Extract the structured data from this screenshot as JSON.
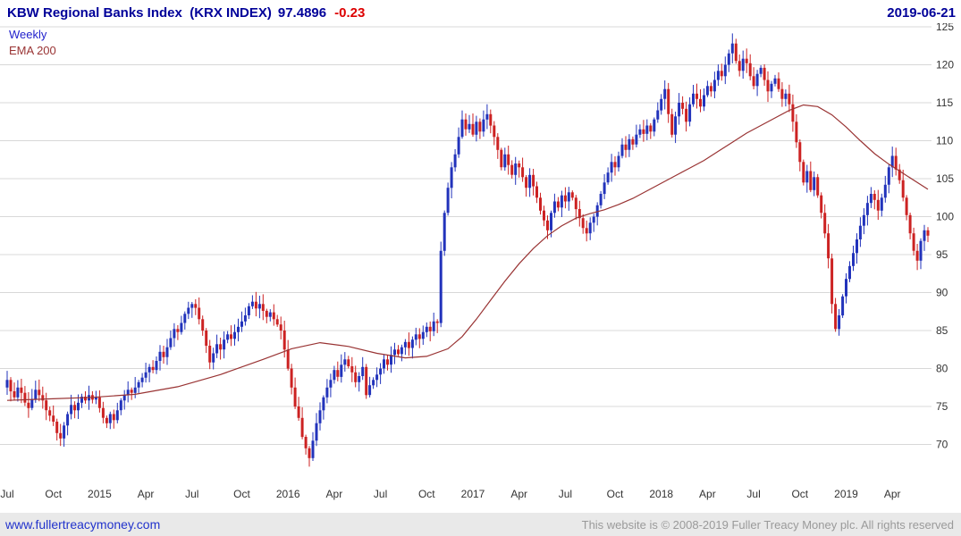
{
  "header": {
    "title": "KBW Regional Banks Index  (KRX INDEX)",
    "price": "97.4896",
    "change": "-0.23",
    "date": "2019-06-21"
  },
  "legend": {
    "timeframe": "Weekly",
    "ema_label": "EMA 200"
  },
  "footer": {
    "site": "www.fullertreacymoney.com",
    "copyright": "This website is © 2008-2019 Fuller Treacy Money plc. All rights reserved"
  },
  "colors": {
    "title": "#000099",
    "change_negative": "#dd0000",
    "legend_timeframe": "#2222cc",
    "legend_ema": "#993333",
    "footer_bg": "#e9e9e9",
    "footer_link": "#2233cc",
    "footer_text": "#9a9a9a"
  },
  "chart_data": {
    "type": "candlestick",
    "title": "KBW Regional Banks Index (KRX INDEX)",
    "timeframe": "weekly",
    "x_axis": "time, weekly bars from Jul 2014 to Jun 2019",
    "last_price": 97.4896,
    "change": -0.23,
    "ylim": [
      67,
      125.5
    ],
    "grid": true,
    "legend_position": "top-left",
    "up_color": "#2233bb",
    "down_color": "#cc2222",
    "ema_color": "#993333",
    "grid_color": "#d8d8d8",
    "axis_text_color": "#333333",
    "y_ticks": [
      70,
      75,
      80,
      85,
      90,
      95,
      100,
      105,
      110,
      115,
      120,
      125
    ],
    "x_ticks": [
      {
        "label": "Jul",
        "week": 0
      },
      {
        "label": "Oct",
        "week": 13
      },
      {
        "label": "2015",
        "week": 26
      },
      {
        "label": "Apr",
        "week": 39
      },
      {
        "label": "Jul",
        "week": 52
      },
      {
        "label": "Oct",
        "week": 66
      },
      {
        "label": "2016",
        "week": 79
      },
      {
        "label": "Apr",
        "week": 92
      },
      {
        "label": "Jul",
        "week": 105
      },
      {
        "label": "Oct",
        "week": 118
      },
      {
        "label": "2017",
        "week": 131
      },
      {
        "label": "Apr",
        "week": 144
      },
      {
        "label": "Jul",
        "week": 157
      },
      {
        "label": "Oct",
        "week": 171
      },
      {
        "label": "2018",
        "week": 184
      },
      {
        "label": "Apr",
        "week": 197
      },
      {
        "label": "Jul",
        "week": 210
      },
      {
        "label": "Oct",
        "week": 223
      },
      {
        "label": "2019",
        "week": 236
      },
      {
        "label": "Apr",
        "week": 249
      }
    ],
    "weekly_closes": [
      78.5,
      77.0,
      76.2,
      77.5,
      76.8,
      75.5,
      74.8,
      76.0,
      77.2,
      76.5,
      75.8,
      74.5,
      73.8,
      73.0,
      71.5,
      70.8,
      72.5,
      74.0,
      75.2,
      74.5,
      75.5,
      76.3,
      75.8,
      76.5,
      75.9,
      76.2,
      74.8,
      73.5,
      72.8,
      74.0,
      73.2,
      74.5,
      75.8,
      76.5,
      77.2,
      76.8,
      77.5,
      78.2,
      78.8,
      79.5,
      80.2,
      79.8,
      81.0,
      82.2,
      81.5,
      82.8,
      84.0,
      85.2,
      84.8,
      86.0,
      87.2,
      88.0,
      88.5,
      88.0,
      86.5,
      85.0,
      83.0,
      80.8,
      82.0,
      83.2,
      82.5,
      83.8,
      84.5,
      83.9,
      84.8,
      85.5,
      86.2,
      87.0,
      88.2,
      88.8,
      87.9,
      88.5,
      87.6,
      86.8,
      87.4,
      86.5,
      85.8,
      85.0,
      82.5,
      80.0,
      77.5,
      75.0,
      73.5,
      71.0,
      69.5,
      68.2,
      70.5,
      72.8,
      74.5,
      76.2,
      77.5,
      78.5,
      79.8,
      78.9,
      80.5,
      81.2,
      80.3,
      79.5,
      78.2,
      79.0,
      80.2,
      76.5,
      77.8,
      78.5,
      79.2,
      80.0,
      81.2,
      80.5,
      81.8,
      82.5,
      81.9,
      82.8,
      83.5,
      82.7,
      83.8,
      84.5,
      83.9,
      84.8,
      85.5,
      84.9,
      86.2,
      86.0,
      95.5,
      100.5,
      103.8,
      106.5,
      108.2,
      110.5,
      112.8,
      111.5,
      112.2,
      110.8,
      112.5,
      111.2,
      112.8,
      113.5,
      112.0,
      110.5,
      108.8,
      106.5,
      108.2,
      106.8,
      105.5,
      107.0,
      106.5,
      105.2,
      103.8,
      105.5,
      104.0,
      102.5,
      100.8,
      99.5,
      98.2,
      100.5,
      102.0,
      101.2,
      102.8,
      102.0,
      103.2,
      102.5,
      101.0,
      99.8,
      98.5,
      97.8,
      99.2,
      100.0,
      101.5,
      103.0,
      104.5,
      105.8,
      107.2,
      106.5,
      108.0,
      109.5,
      108.8,
      110.2,
      109.5,
      110.8,
      111.5,
      110.9,
      112.0,
      111.2,
      112.8,
      114.0,
      115.5,
      116.8,
      113.5,
      110.8,
      113.2,
      115.0,
      114.2,
      112.5,
      114.8,
      116.2,
      115.5,
      114.5,
      116.0,
      117.2,
      116.5,
      118.0,
      119.2,
      118.5,
      120.0,
      121.5,
      122.8,
      120.5,
      119.2,
      120.8,
      120.2,
      118.5,
      117.2,
      118.8,
      119.6,
      118.0,
      116.5,
      117.5,
      118.2,
      116.8,
      115.5,
      116.2,
      114.8,
      112.5,
      109.8,
      107.2,
      104.5,
      106.0,
      103.5,
      105.2,
      102.8,
      100.5,
      97.8,
      94.5,
      88.5,
      85.2,
      87.0,
      89.5,
      91.8,
      93.5,
      95.2,
      97.0,
      98.8,
      100.2,
      101.8,
      103.0,
      102.2,
      100.8,
      102.5,
      104.2,
      106.5,
      108.0,
      106.2,
      104.8,
      102.5,
      100.2,
      97.8,
      95.5,
      94.2,
      96.8,
      98.2,
      97.49
    ],
    "ema200_anchors": [
      [
        0,
        75.8
      ],
      [
        12,
        76.0
      ],
      [
        24,
        76.2
      ],
      [
        36,
        76.6
      ],
      [
        48,
        77.6
      ],
      [
        60,
        79.2
      ],
      [
        72,
        81.2
      ],
      [
        80,
        82.6
      ],
      [
        88,
        83.4
      ],
      [
        96,
        82.9
      ],
      [
        104,
        82.0
      ],
      [
        112,
        81.4
      ],
      [
        118,
        81.6
      ],
      [
        124,
        82.6
      ],
      [
        128,
        84.2
      ],
      [
        132,
        86.5
      ],
      [
        136,
        89.0
      ],
      [
        140,
        91.5
      ],
      [
        144,
        93.8
      ],
      [
        148,
        95.8
      ],
      [
        152,
        97.5
      ],
      [
        156,
        98.8
      ],
      [
        160,
        99.8
      ],
      [
        164,
        100.4
      ],
      [
        168,
        100.9
      ],
      [
        172,
        101.6
      ],
      [
        176,
        102.4
      ],
      [
        180,
        103.4
      ],
      [
        184,
        104.4
      ],
      [
        188,
        105.4
      ],
      [
        192,
        106.4
      ],
      [
        196,
        107.4
      ],
      [
        200,
        108.6
      ],
      [
        204,
        109.8
      ],
      [
        208,
        111.0
      ],
      [
        212,
        112.0
      ],
      [
        216,
        113.0
      ],
      [
        220,
        114.0
      ],
      [
        224,
        114.7
      ],
      [
        228,
        114.5
      ],
      [
        232,
        113.4
      ],
      [
        236,
        111.8
      ],
      [
        240,
        110.0
      ],
      [
        244,
        108.3
      ],
      [
        248,
        106.9
      ],
      [
        252,
        105.7
      ],
      [
        256,
        104.5
      ],
      [
        259,
        103.6
      ]
    ]
  }
}
